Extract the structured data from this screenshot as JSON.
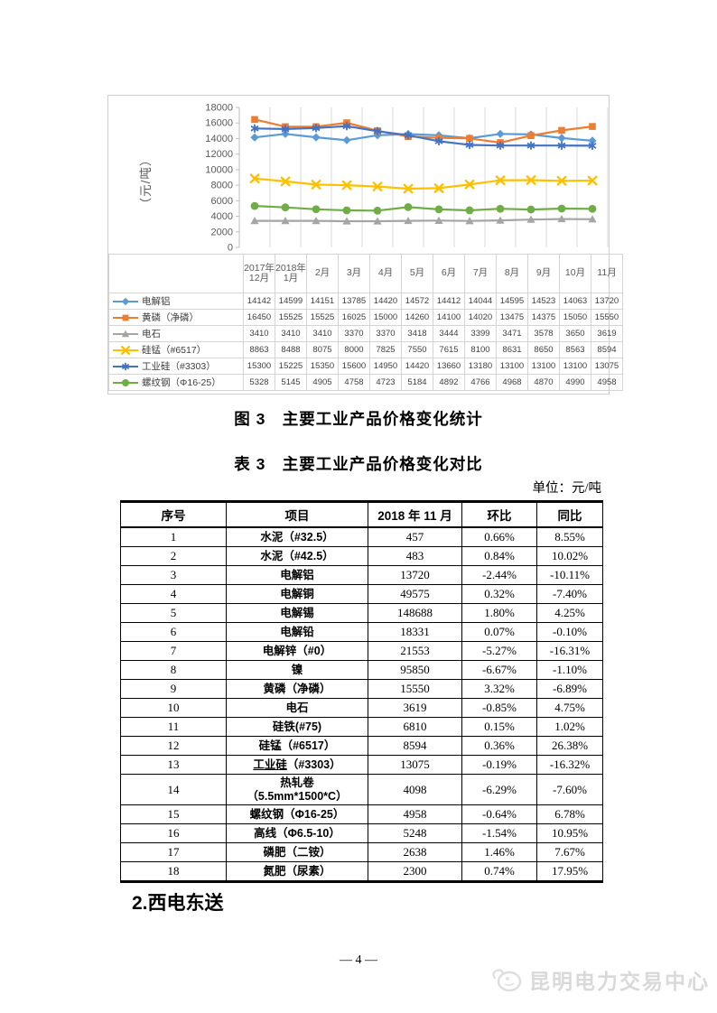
{
  "page": {
    "figure_title": "图 3　主要工业产品价格变化统计",
    "table_title": "表 3　主要工业产品价格变化对比",
    "unit_label": "单位：元/吨",
    "section_heading": "2.西电东送",
    "page_number": "— 4 —",
    "footer_brand": "昆明电力交易中心"
  },
  "chart_data": {
    "type": "line",
    "title": "",
    "xlabel": "",
    "ylabel": "（元/吨）",
    "ylim": [
      0,
      18000
    ],
    "ytick_step": 2000,
    "grid": "vertical-only",
    "legend_position": "data-table-left",
    "categories": [
      "2017年12月",
      "2018年1月",
      "2月",
      "3月",
      "4月",
      "5月",
      "6月",
      "7月",
      "8月",
      "9月",
      "10月",
      "11月"
    ],
    "series": [
      {
        "name": "电解铝",
        "marker": "diamond",
        "color": "#5B9BD5",
        "values": [
          14142,
          14599,
          14151,
          13785,
          14420,
          14572,
          14412,
          14044,
          14595,
          14523,
          14063,
          13720
        ]
      },
      {
        "name": "黄磷（净磷）",
        "marker": "square",
        "color": "#ED7D31",
        "values": [
          16450,
          15525,
          15525,
          16025,
          15000,
          14260,
          14100,
          14020,
          13475,
          14375,
          15050,
          15550
        ]
      },
      {
        "name": "电石",
        "marker": "triangle",
        "color": "#A5A5A5",
        "values": [
          3410,
          3410,
          3410,
          3370,
          3370,
          3418,
          3444,
          3399,
          3471,
          3578,
          3650,
          3619
        ]
      },
      {
        "name": "硅锰（#6517）",
        "marker": "x",
        "color": "#FFC000",
        "values": [
          8863,
          8488,
          8075,
          8000,
          7825,
          7550,
          7615,
          8100,
          8631,
          8650,
          8563,
          8594
        ]
      },
      {
        "name": "工业硅（#3303）",
        "marker": "asterisk",
        "color": "#4472C4",
        "values": [
          15300,
          15225,
          15350,
          15600,
          14950,
          14420,
          13660,
          13180,
          13100,
          13100,
          13100,
          13075
        ]
      },
      {
        "name": "螺纹钢（Φ16-25）",
        "marker": "circle",
        "color": "#70AD47",
        "values": [
          5328,
          5145,
          4905,
          4758,
          4723,
          5184,
          4892,
          4766,
          4968,
          4870,
          4990,
          4958
        ]
      }
    ]
  },
  "table": {
    "headers": [
      "序号",
      "项目",
      "2018 年 11 月",
      "环比",
      "同比"
    ],
    "underlined_text": "工业硅",
    "rows": [
      [
        "1",
        "水泥（#32.5）",
        "457",
        "0.66%",
        "8.55%"
      ],
      [
        "2",
        "水泥（#42.5）",
        "483",
        "0.84%",
        "10.02%"
      ],
      [
        "3",
        "电解铝",
        "13720",
        "-2.44%",
        "-10.11%"
      ],
      [
        "4",
        "电解铜",
        "49575",
        "0.32%",
        "-7.40%"
      ],
      [
        "5",
        "电解锡",
        "148688",
        "1.80%",
        "4.25%"
      ],
      [
        "6",
        "电解铅",
        "18331",
        "0.07%",
        "-0.10%"
      ],
      [
        "7",
        "电解锌（#0）",
        "21553",
        "-5.27%",
        "-16.31%"
      ],
      [
        "8",
        "镍",
        "95850",
        "-6.67%",
        "-1.10%"
      ],
      [
        "9",
        "黄磷（净磷）",
        "15550",
        "3.32%",
        "-6.89%"
      ],
      [
        "10",
        "电石",
        "3619",
        "-0.85%",
        "4.75%"
      ],
      [
        "11",
        "硅铁(#75)",
        "6810",
        "0.15%",
        "1.02%"
      ],
      [
        "12",
        "硅锰（#6517）",
        "8594",
        "0.36%",
        "26.38%"
      ],
      [
        "13",
        "工业硅（#3303）",
        "13075",
        "-0.19%",
        "-16.32%"
      ],
      [
        "14",
        "热轧卷\n（5.5mm*1500*C）",
        "4098",
        "-6.29%",
        "-7.60%"
      ],
      [
        "15",
        "螺纹钢（Φ16-25）",
        "4958",
        "-0.64%",
        "6.78%"
      ],
      [
        "16",
        "高线（Φ6.5-10）",
        "5248",
        "-1.54%",
        "10.95%"
      ],
      [
        "17",
        "磷肥（二铵）",
        "2638",
        "1.46%",
        "7.67%"
      ],
      [
        "18",
        "氮肥（尿素）",
        "2300",
        "0.74%",
        "17.95%"
      ]
    ]
  }
}
